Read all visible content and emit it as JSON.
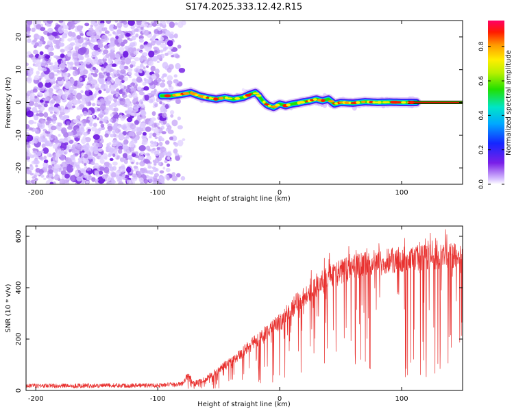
{
  "title": "S174.2025.333.12.42.R15",
  "chart_data": [
    {
      "type": "heatmap",
      "xlabel": "Height of straight line (km)",
      "ylabel": "Frequency (Hz)",
      "xlim": [
        -208,
        150
      ],
      "ylim": [
        -25,
        25
      ],
      "xticks": [
        -200,
        -100,
        0,
        100
      ],
      "yticks": [
        -20,
        -10,
        0,
        10,
        20
      ],
      "colorbar": {
        "label": "Normalized spectral amplitude",
        "ticks": [
          0.0,
          0.2,
          0.4,
          0.6,
          0.8
        ],
        "range": [
          0,
          0.95
        ]
      },
      "ridge": {
        "x": [
          -97,
          -90,
          -80,
          -73,
          -66,
          -60,
          -52,
          -45,
          -38,
          -30,
          -24,
          -20,
          -17,
          -14,
          -10,
          -5,
          0,
          5,
          10,
          15,
          20,
          25,
          30,
          35,
          40,
          45,
          50,
          60,
          70,
          80,
          90,
          100,
          110,
          150
        ],
        "freq": [
          2,
          2,
          2.5,
          3,
          2,
          1.5,
          1,
          1.5,
          1,
          1.5,
          2.5,
          3,
          2,
          0.5,
          -0.8,
          -1.5,
          -0.5,
          -1,
          -0.5,
          -0.2,
          0.2,
          0.5,
          1,
          0.5,
          1,
          -0.5,
          0,
          -0.2,
          0.2,
          0,
          0.1,
          0,
          0,
          0
        ]
      }
    },
    {
      "type": "line",
      "xlabel": "Height of straight line (km)",
      "ylabel": "SNR (10 * v/v)",
      "xlim": [
        -208,
        150
      ],
      "ylim": [
        0,
        640
      ],
      "xticks": [
        -200,
        -100,
        0,
        100
      ],
      "yticks": [
        0,
        200,
        400,
        600
      ],
      "series": [
        {
          "name": "SNR",
          "color": "#e8302e",
          "envelope_x": [
            -208,
            -100,
            -80,
            -75,
            -70,
            -60,
            -50,
            -40,
            -30,
            -20,
            -10,
            0,
            10,
            20,
            30,
            40,
            50,
            60,
            70,
            80,
            90,
            100,
            110,
            120,
            130,
            140,
            150
          ],
          "envelope_mean": [
            18,
            20,
            25,
            60,
            25,
            45,
            80,
            115,
            150,
            190,
            230,
            265,
            320,
            370,
            400,
            440,
            460,
            480,
            490,
            500,
            505,
            510,
            515,
            520,
            520,
            525,
            525
          ]
        }
      ]
    }
  ],
  "colors": {
    "snr_line": "#e8302e",
    "ridge_peak": "#e80000"
  }
}
